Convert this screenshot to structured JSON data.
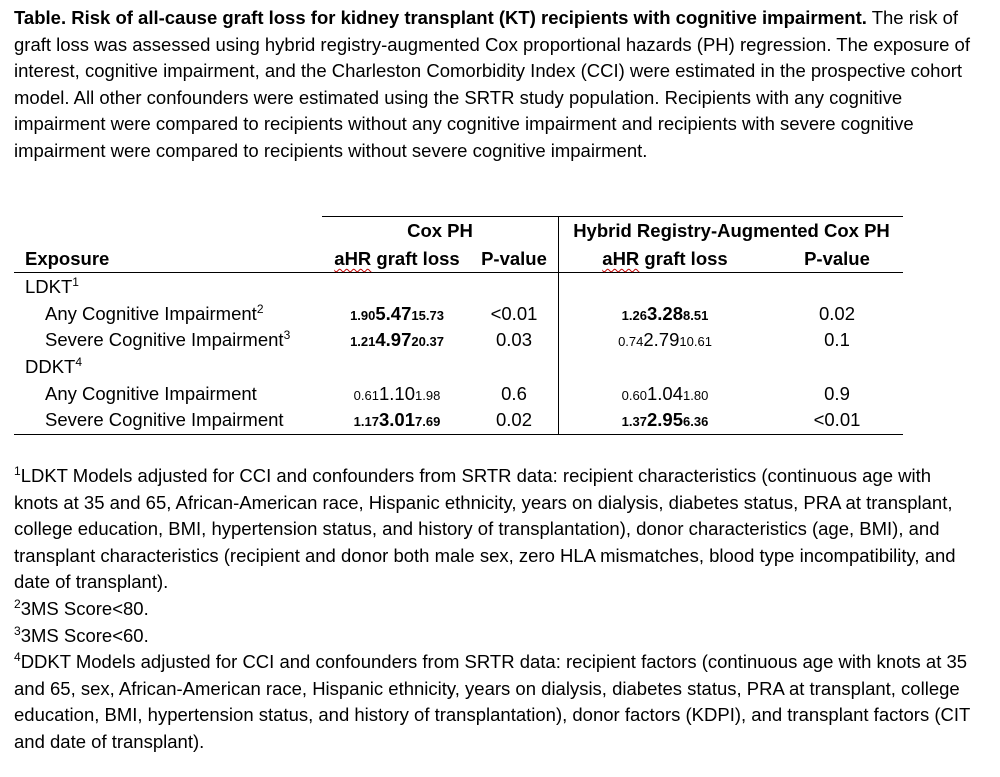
{
  "caption": {
    "title": "Table. Risk of all-cause graft loss for kidney transplant (KT) recipients with cognitive impairment.",
    "body": "The risk of graft loss was assessed using hybrid registry-augmented Cox proportional hazards (PH) regression. The exposure of interest, cognitive impairment, and the Charleston Comorbidity Index (CCI) were estimated in the prospective cohort model. All other confounders were estimated using the SRTR study population. Recipients with any cognitive impairment were compared to recipients without any cognitive impairment and recipients with severe cognitive impairment were compared to recipients without severe cognitive impairment."
  },
  "table": {
    "exposure_header": "Exposure",
    "group_cox": "Cox PH",
    "group_hybrid": "Hybrid Registry-Augmented Cox PH",
    "ahr_label_prefix": "aHR",
    "ahr_label_suffix": " graft loss",
    "pvalue_label": "P-value",
    "sections": [
      {
        "label": "LDKT",
        "sup": "1",
        "rows": [
          {
            "label": "Any Cognitive Impairment",
            "sup": "2",
            "cox": {
              "low": "1.90",
              "est": "5.47",
              "high": "15.73",
              "bold": true
            },
            "cox_p": "<0.01",
            "hyb": {
              "low": "1.26",
              "est": "3.28",
              "high": "8.51",
              "bold": true
            },
            "hyb_p": "0.02"
          },
          {
            "label": "Severe Cognitive Impairment",
            "sup": "3",
            "cox": {
              "low": "1.21",
              "est": "4.97",
              "high": "20.37",
              "bold": true
            },
            "cox_p": "0.03",
            "hyb": {
              "low": "0.74",
              "est": "2.79",
              "high": "10.61",
              "bold": false
            },
            "hyb_p": "0.1"
          }
        ]
      },
      {
        "label": "DDKT",
        "sup": "4",
        "rows": [
          {
            "label": "Any Cognitive Impairment",
            "sup": "",
            "cox": {
              "low": "0.61",
              "est": "1.10",
              "high": "1.98",
              "bold": false
            },
            "cox_p": "0.6",
            "hyb": {
              "low": "0.60",
              "est": "1.04",
              "high": "1.80",
              "bold": false
            },
            "hyb_p": "0.9"
          },
          {
            "label": "Severe Cognitive Impairment",
            "sup": "",
            "cox": {
              "low": "1.17",
              "est": "3.01",
              "high": "7.69",
              "bold": true
            },
            "cox_p": "0.02",
            "hyb": {
              "low": "1.37",
              "est": "2.95",
              "high": "6.36",
              "bold": true
            },
            "hyb_p": "<0.01"
          }
        ]
      }
    ]
  },
  "footnotes": [
    {
      "mark": "1",
      "text": "LDKT Models adjusted for CCI and confounders from SRTR data: recipient characteristics (continuous age with knots at 35 and 65, African-American race, Hispanic ethnicity, years on dialysis, diabetes status, PRA at transplant, college education, BMI, hypertension status, and history of transplantation), donor characteristics (age, BMI), and transplant characteristics (recipient and donor both male sex, zero HLA mismatches, blood type incompatibility, and date of transplant)."
    },
    {
      "mark": "2",
      "text": "3MS Score<80."
    },
    {
      "mark": "3",
      "text": "3MS Score<60."
    },
    {
      "mark": "4",
      "text": "DDKT Models adjusted for CCI and confounders from SRTR data: recipient factors (continuous age with knots at 35 and 65, sex, African-American race, Hispanic ethnicity, years on dialysis, diabetes status, PRA at transplant, college education, BMI, hypertension status, and history of transplantation), donor factors (KDPI), and transplant factors (CIT and date of transplant)."
    }
  ]
}
